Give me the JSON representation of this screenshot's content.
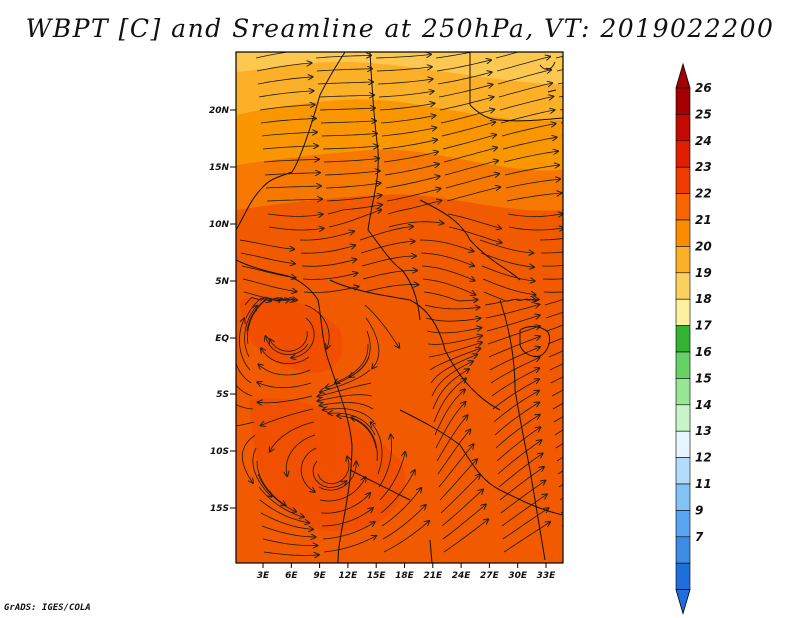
{
  "title": "WBPT [C] and Sreamline at 250hPa, VT: 2019022200",
  "credit": "GrADS: IGES/COLA",
  "map": {
    "variable": "WBPT [C]",
    "overlay": "Streamline",
    "level": "250hPa",
    "valid_time": "2019022200",
    "lat_labels": [
      "20N",
      "15N",
      "10N",
      "5N",
      "EQ",
      "5S",
      "10S",
      "15S"
    ],
    "lon_labels": [
      "3E",
      "6E",
      "9E",
      "12E",
      "15E",
      "18E",
      "21E",
      "24E",
      "27E",
      "30E",
      "33E"
    ]
  },
  "colorbar": {
    "labels": [
      "26",
      "25",
      "24",
      "23",
      "22",
      "21",
      "20",
      "19",
      "18",
      "17",
      "16",
      "15",
      "14",
      "13",
      "12",
      "11",
      "9",
      "7"
    ],
    "colors": [
      "#a50000",
      "#c40a00",
      "#e01e00",
      "#f03c00",
      "#f76400",
      "#fa8c00",
      "#fbb028",
      "#fcd060",
      "#fdf0a0",
      "#32b432",
      "#64d264",
      "#96e696",
      "#c8f5c8",
      "#e6f5ff",
      "#b4dcfa",
      "#82c3f5",
      "#5aa5f0",
      "#3c8ce6",
      "#1e6edc"
    ],
    "top_color": "#a50000",
    "bottom_color": "#1e6edc"
  }
}
